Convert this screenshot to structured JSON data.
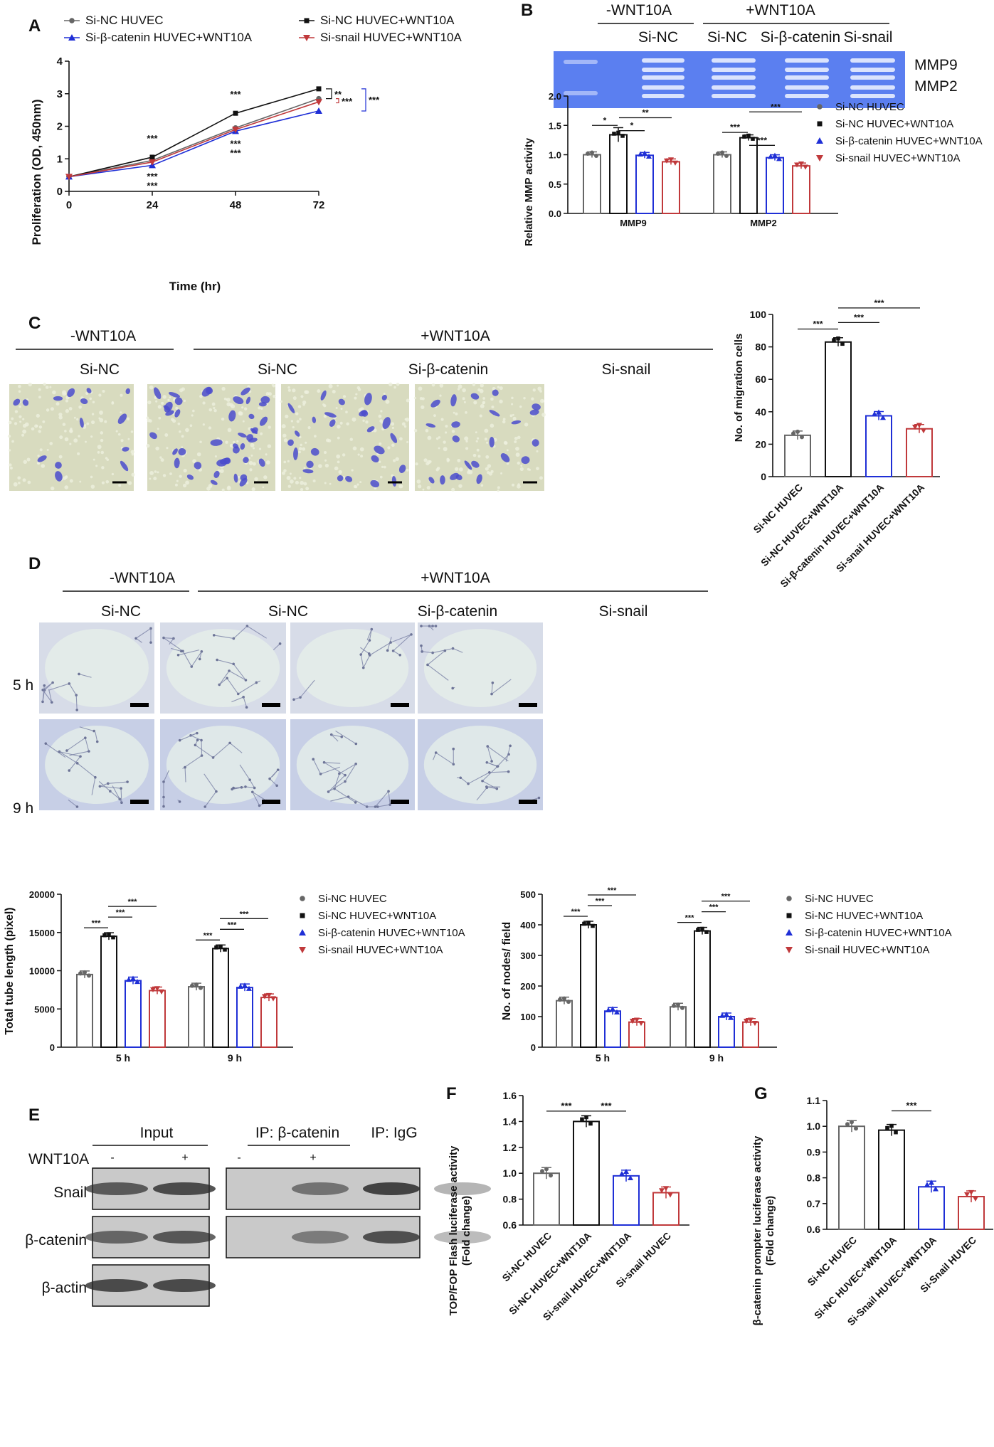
{
  "panels": {
    "A": "A",
    "B": "B",
    "C": "C",
    "D": "D",
    "E": "E",
    "F": "F",
    "G": "G"
  },
  "colors": {
    "black": "#111111",
    "gray": "#666666",
    "blue": "#1f2fd6",
    "red": "#c0393b",
    "gel": "#5b7ff0",
    "stain": "#4b4ccc",
    "tube": "#c8d0ea"
  },
  "groups": {
    "minus": "-WNT10A",
    "plus": "+WNT10A",
    "sinc": "Si-NC",
    "sibcat": "Si-β-catenin",
    "sisnail": "Si-snail",
    "si_bcat_nohyphen": "Si-β-catenin Si-snail"
  },
  "legend4": [
    "Si-NC HUVEC",
    "Si-NC HUVEC+WNT10A",
    "Si-β-catenin HUVEC+WNT10A",
    "Si-snail HUVEC+WNT10A"
  ],
  "panelA": {
    "chart_data": {
      "type": "line",
      "title": "",
      "xlabel": "Time (hr)",
      "ylabel": "Proliferation (OD, 450nm)",
      "x": [
        0,
        24,
        48,
        72
      ],
      "xticks": [
        "0",
        "24",
        "48",
        "72"
      ],
      "yticks": [
        "0",
        "1",
        "2",
        "3",
        "4"
      ],
      "xlim": [
        0,
        72
      ],
      "ylim": [
        0,
        4
      ],
      "series": [
        {
          "name": "Si-NC HUVEC",
          "values": [
            0.45,
            0.95,
            1.95,
            2.85
          ]
        },
        {
          "name": "Si-NC HUVEC+WNT10A",
          "values": [
            0.45,
            1.05,
            2.4,
            3.15
          ]
        },
        {
          "name": "Si-β-catenin HUVEC+WNT10A",
          "values": [
            0.45,
            0.8,
            1.85,
            2.47
          ]
        },
        {
          "name": "Si-snail HUVEC+WNT10A",
          "values": [
            0.45,
            0.9,
            1.9,
            2.75
          ]
        }
      ],
      "annotations": [
        "***",
        "***",
        "***",
        "***",
        "***",
        "***",
        "**",
        "***",
        "***"
      ]
    }
  },
  "panelB": {
    "gel_labels": {
      "mmp9": "MMP9",
      "mmp2": "MMP2"
    },
    "chart_data": {
      "type": "bar",
      "ylabel": "Relative MMP activity",
      "categories": [
        "MMP9",
        "MMP2"
      ],
      "yticks": [
        "0.0",
        "0.5",
        "1.0",
        "1.5",
        "2.0"
      ],
      "ylim": [
        0,
        2
      ],
      "series": [
        {
          "name": "Si-NC HUVEC",
          "values": [
            1.0,
            1.0
          ]
        },
        {
          "name": "Si-NC HUVEC+WNT10A",
          "values": [
            1.34,
            1.29
          ]
        },
        {
          "name": "Si-β-catenin HUVEC+WNT10A",
          "values": [
            0.99,
            0.95
          ]
        },
        {
          "name": "Si-snail HUVEC+WNT10A",
          "values": [
            0.88,
            0.81
          ]
        }
      ],
      "annotations": [
        "*",
        "*",
        "**",
        "***",
        "***",
        "***"
      ]
    }
  },
  "panelC": {
    "chart_data": {
      "type": "bar",
      "ylabel": "No. of migration cells",
      "categories": [
        "Si-NC HUVEC",
        "Si-NC HUVEC+WNT10A",
        "Si-β-catenin HUVEC+WNT10A",
        "Si-snail HUVEC+WNT10A"
      ],
      "yticks": [
        "0",
        "20",
        "40",
        "60",
        "80",
        "100"
      ],
      "ylim": [
        0,
        100
      ],
      "values": [
        25.5,
        83,
        37.5,
        29.5
      ],
      "annotations": [
        "***",
        "***",
        "***"
      ]
    }
  },
  "panelD": {
    "rows": [
      "5 h",
      "9 h"
    ],
    "chart_tube": {
      "type": "bar",
      "ylabel": "Total tube length (pixel)",
      "categories": [
        "5 h",
        "9 h"
      ],
      "yticks": [
        "0",
        "5000",
        "10000",
        "15000",
        "20000"
      ],
      "ylim": [
        0,
        20000
      ],
      "series": [
        {
          "name": "Si-NC HUVEC",
          "values": [
            9500,
            7900
          ]
        },
        {
          "name": "Si-NC HUVEC+WNT10A",
          "values": [
            14500,
            12900
          ]
        },
        {
          "name": "Si-β-catenin HUVEC+WNT10A",
          "values": [
            8700,
            7800
          ]
        },
        {
          "name": "Si-snail HUVEC+WNT10A",
          "values": [
            7400,
            6500
          ]
        }
      ],
      "annotations": [
        "***",
        "***",
        "***",
        "***",
        "***",
        "***"
      ]
    },
    "chart_nodes": {
      "type": "bar",
      "ylabel": "No. of nodes/ field",
      "categories": [
        "5 h",
        "9 h"
      ],
      "yticks": [
        "0",
        "100",
        "200",
        "300",
        "400",
        "500"
      ],
      "ylim": [
        0,
        500
      ],
      "series": [
        {
          "name": "Si-NC HUVEC",
          "values": [
            152,
            132
          ]
        },
        {
          "name": "Si-NC HUVEC+WNT10A",
          "values": [
            400,
            380
          ]
        },
        {
          "name": "Si-β-catenin HUVEC+WNT10A",
          "values": [
            118,
            100
          ]
        },
        {
          "name": "Si-snail HUVEC+WNT10A",
          "values": [
            82,
            82
          ]
        }
      ],
      "annotations": [
        "***",
        "***",
        "***",
        "***",
        "***",
        "***"
      ]
    }
  },
  "panelE": {
    "header_input": "Input",
    "header_ip": "IP: β-catenin",
    "header_igg": "IP: IgG",
    "wnt_label": "WNT10A",
    "lane_marks": [
      "-",
      "+",
      "-",
      "+"
    ],
    "rows": [
      "Snail",
      "β-catenin",
      "β-actin"
    ]
  },
  "panelF": {
    "chart_data": {
      "type": "bar",
      "ylabel": "TOP/FOP Flash luciferase activity (Fold change)",
      "ylabel_lines": [
        "TOP/FOP Flash luciferase activity",
        "(Fold change)"
      ],
      "categories": [
        "Si-NC HUVEC",
        "Si-NC HUVEC+WNT10A",
        "Si-snail HUVEC+WNT10A",
        "Si-snail HUVEC"
      ],
      "yticks": [
        "0.6",
        "0.8",
        "1.0",
        "1.2",
        "1.4",
        "1.6"
      ],
      "ylim": [
        0.6,
        1.6
      ],
      "values": [
        1.0,
        1.4,
        0.98,
        0.85
      ],
      "annotations": [
        "***",
        "***"
      ]
    }
  },
  "panelG": {
    "chart_data": {
      "type": "bar",
      "ylabel": "β-catenin prompter luciferase activity (Fold change)",
      "ylabel_lines": [
        "β-catenin prompter luciferase activity",
        "(Fold change)"
      ],
      "categories": [
        "Si-NC HUVEC",
        "Si-NC HUVEC+WNT10A",
        "Si-Snail HUVEC+WNT10A",
        "Si-Snail HUVEC"
      ],
      "yticks": [
        "0.6",
        "0.7",
        "0.8",
        "0.9",
        "1.0",
        "1.1"
      ],
      "ylim": [
        0.6,
        1.1
      ],
      "values": [
        1.0,
        0.985,
        0.765,
        0.727
      ],
      "annotations": [
        "***"
      ]
    }
  }
}
